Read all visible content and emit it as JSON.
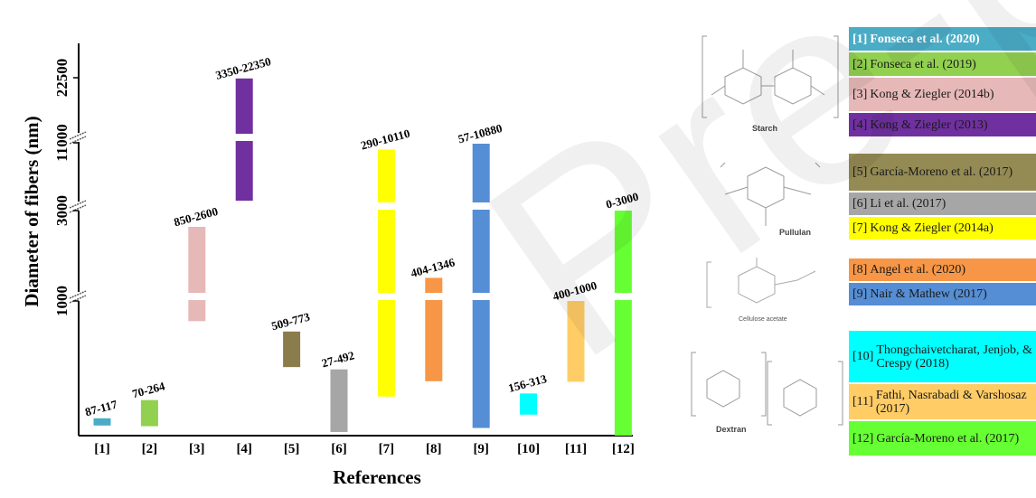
{
  "chart_data": {
    "type": "bar",
    "xlabel": "References",
    "ylabel": "Diameter of fibers (nm)",
    "y_ticks": [
      "1000",
      "3000",
      "11000",
      "22500"
    ],
    "y_scale": "broken (axis breaks between 1000–3000, 3000–11000, 11000–22500)",
    "categories": [
      "[1]",
      "[2]",
      "[3]",
      "[4]",
      "[5]",
      "[6]",
      "[7]",
      "[8]",
      "[9]",
      "[10]",
      "[11]",
      "[12]"
    ],
    "ranges": [
      {
        "ref": "[1]",
        "label": "87-117",
        "min": 87,
        "max": 117,
        "color": "#4bacc6"
      },
      {
        "ref": "[2]",
        "label": "70-264",
        "min": 70,
        "max": 264,
        "color": "#92d050"
      },
      {
        "ref": "[3]",
        "label": "850-2600",
        "min": 850,
        "max": 2600,
        "color": "#e6b9b8"
      },
      {
        "ref": "[4]",
        "label": "3350-22350",
        "min": 3350,
        "max": 22350,
        "color": "#7030a0"
      },
      {
        "ref": "[5]",
        "label": "509-773",
        "min": 509,
        "max": 773,
        "color": "#8b7d4b"
      },
      {
        "ref": "[6]",
        "label": "27-492",
        "min": 27,
        "max": 492,
        "color": "#a6a6a6"
      },
      {
        "ref": "[7]",
        "label": "290-10110",
        "min": 290,
        "max": 10110,
        "color": "#ffff00"
      },
      {
        "ref": "[8]",
        "label": "404-1346",
        "min": 404,
        "max": 1346,
        "color": "#f79646"
      },
      {
        "ref": "[9]",
        "label": "57-10880",
        "min": 57,
        "max": 10880,
        "color": "#558ed5"
      },
      {
        "ref": "[10]",
        "label": "156-313",
        "min": 156,
        "max": 313,
        "color": "#00ffff"
      },
      {
        "ref": "[11]",
        "label": "400-1000",
        "min": 400,
        "max": 1000,
        "color": "#ffcc66"
      },
      {
        "ref": "[12]",
        "label": "0-3000",
        "min": 0,
        "max": 3000,
        "color": "#66ff33"
      }
    ]
  },
  "legend": [
    {
      "num": "[1]",
      "text": "Fonseca et al. (2020)",
      "color": "#4bacc6"
    },
    {
      "num": "[2]",
      "text": "Fonseca et al. (2019)",
      "color": "#92d050"
    },
    {
      "num": "[3]",
      "text": "Kong & Ziegler (2014b)",
      "color": "#e6b9b8"
    },
    {
      "num": "[4]",
      "text": "Kong & Ziegler (2013)",
      "color": "#7030a0"
    },
    {
      "num": "[5]",
      "text": "García-Moreno et al. (2017)",
      "color": "#948a54"
    },
    {
      "num": "[6]",
      "text": "Li et al. (2017)",
      "color": "#a6a6a6"
    },
    {
      "num": "[7]",
      "text": "Kong & Ziegler (2014a)",
      "color": "#ffff00"
    },
    {
      "num": "[8]",
      "text": "Angel et al. (2020)",
      "color": "#f79646"
    },
    {
      "num": "[9]",
      "text": "Nair & Mathew (2017)",
      "color": "#558ed5"
    },
    {
      "num": "[10]",
      "text": "Thongchaivetcharat, Jenjob, & Crespy (2018)",
      "color": "#00ffff"
    },
    {
      "num": "[11]",
      "text": "Fathi, Nasrabadi & Varshosaz (2017)",
      "color": "#ffcc66"
    },
    {
      "num": "[12]",
      "text": "García-Moreno et al. (2017)",
      "color": "#66ff33"
    }
  ],
  "structures": [
    {
      "name": "Starch"
    },
    {
      "name": "Pullulan"
    },
    {
      "name": "Cellulose acetate"
    },
    {
      "name": "Dextran"
    }
  ],
  "watermark": "Pre-proof"
}
